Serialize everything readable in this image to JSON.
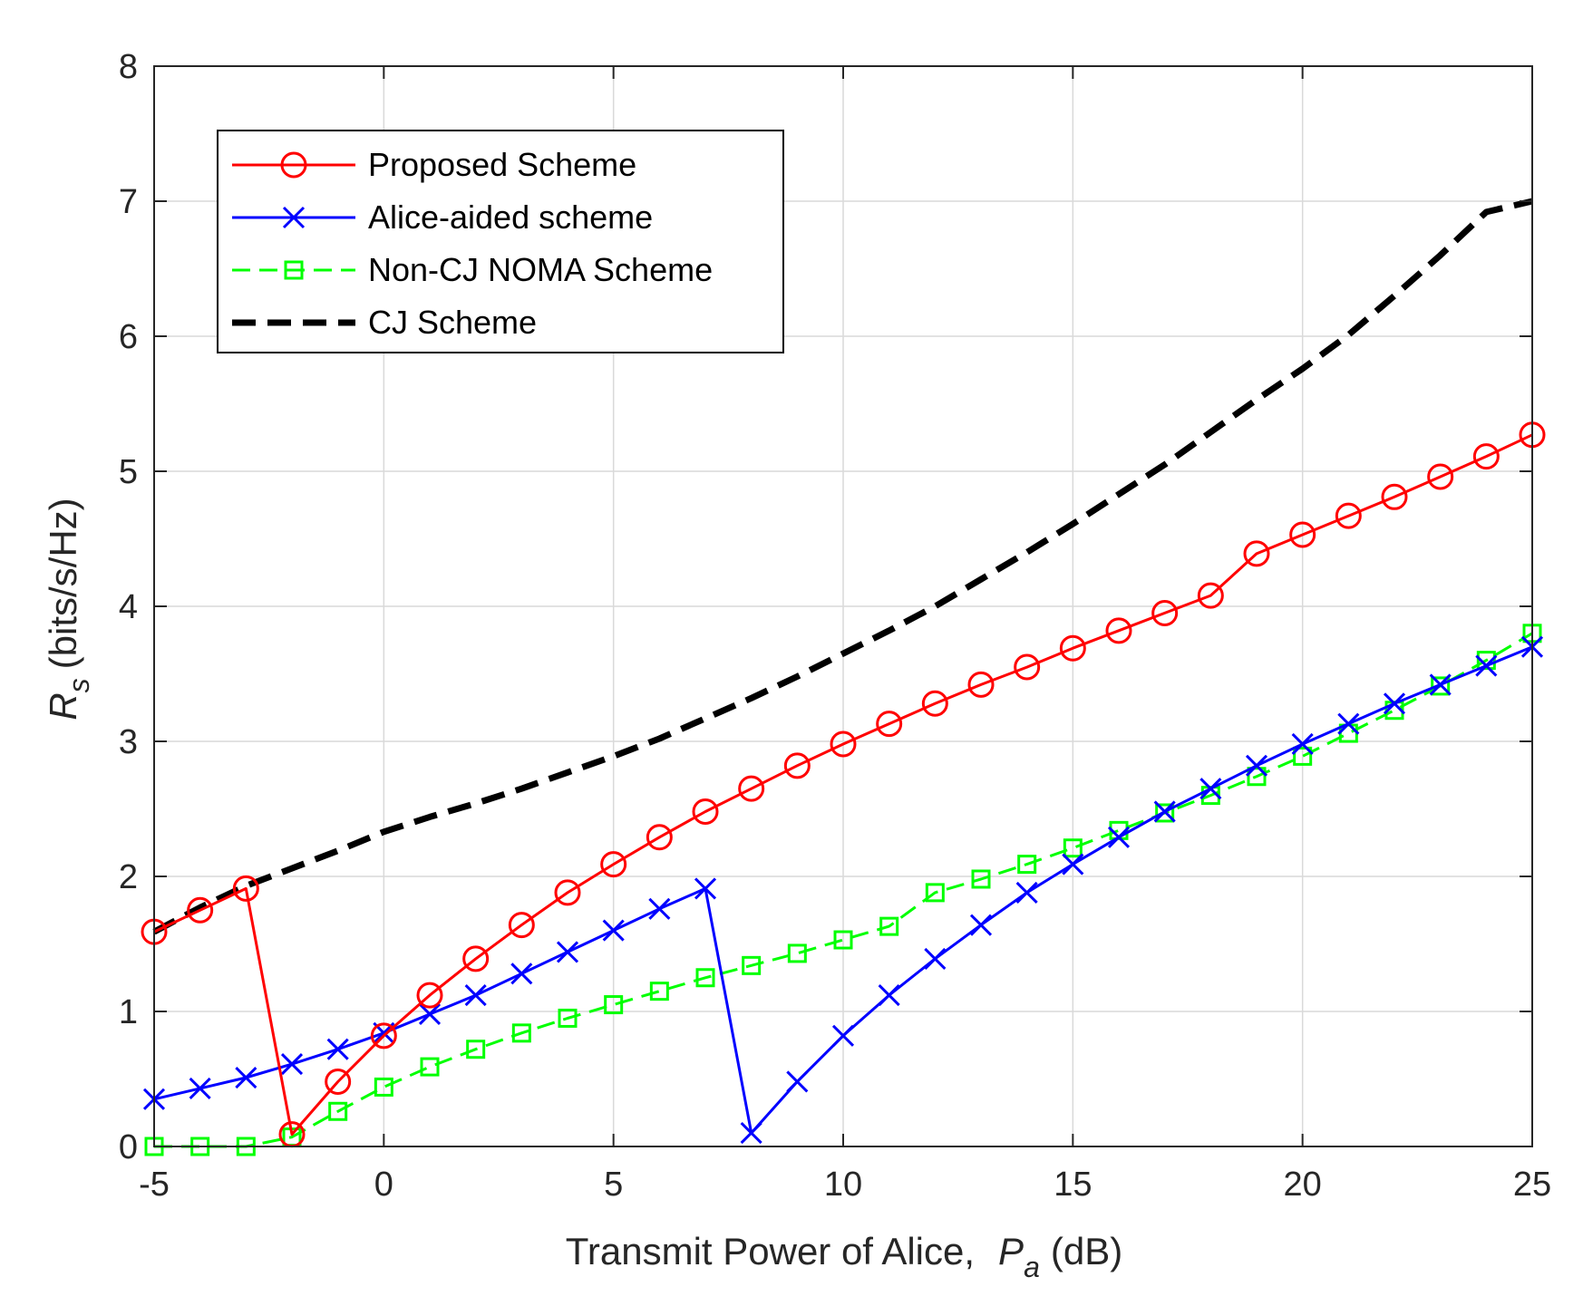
{
  "chart_data": {
    "type": "line",
    "title": "",
    "xlabel": {
      "prefix": "Transmit Power of Alice,",
      "symbol": "P",
      "subscript": "a",
      "unit": "(dB)"
    },
    "ylabel": {
      "symbol": "R",
      "subscript": "s",
      "unit": "(bits/s/Hz)"
    },
    "xlim": [
      -5,
      25
    ],
    "ylim": [
      0,
      8
    ],
    "xticks": [
      -5,
      0,
      5,
      10,
      15,
      20,
      25
    ],
    "yticks": [
      0,
      1,
      2,
      3,
      4,
      5,
      6,
      7,
      8
    ],
    "grid": true,
    "legend_position": "top-left",
    "series": [
      {
        "name": "Proposed Scheme",
        "color": "#ff0000",
        "line_style": "solid",
        "marker": "circle",
        "x": [
          -5,
          -4,
          -3,
          -2,
          -1,
          0,
          1,
          2,
          3,
          4,
          5,
          6,
          7,
          8,
          9,
          10,
          11,
          12,
          13,
          14,
          15,
          16,
          17,
          18,
          19,
          20,
          21,
          22,
          23,
          24,
          25
        ],
        "values": [
          1.59,
          1.75,
          1.91,
          0.09,
          0.48,
          0.82,
          1.12,
          1.39,
          1.64,
          1.88,
          2.09,
          2.29,
          2.48,
          2.65,
          2.82,
          2.98,
          3.13,
          3.28,
          3.42,
          3.55,
          3.69,
          3.82,
          3.95,
          4.08,
          4.39,
          4.53,
          4.67,
          4.81,
          4.96,
          5.11,
          5.27
        ]
      },
      {
        "name": "Alice-aided scheme",
        "color": "#0000ff",
        "line_style": "solid",
        "marker": "x",
        "x": [
          -5,
          -4,
          -3,
          -2,
          -1,
          0,
          1,
          2,
          3,
          4,
          5,
          6,
          7,
          8,
          9,
          10,
          11,
          12,
          13,
          14,
          15,
          16,
          17,
          18,
          19,
          20,
          21,
          22,
          23,
          24,
          25
        ],
        "values": [
          0.35,
          0.43,
          0.51,
          0.61,
          0.72,
          0.84,
          0.98,
          1.12,
          1.28,
          1.44,
          1.6,
          1.76,
          1.91,
          0.1,
          0.48,
          0.82,
          1.12,
          1.39,
          1.64,
          1.88,
          2.09,
          2.29,
          2.48,
          2.65,
          2.82,
          2.98,
          3.13,
          3.28,
          3.42,
          3.56,
          3.7
        ]
      },
      {
        "name": "Non-CJ NOMA Scheme",
        "color": "#00ff00",
        "line_style": "dashed",
        "marker": "square",
        "x": [
          -5,
          -4,
          -3,
          -2,
          -1,
          0,
          1,
          2,
          3,
          4,
          5,
          6,
          7,
          8,
          9,
          10,
          11,
          12,
          13,
          14,
          15,
          16,
          17,
          18,
          19,
          20,
          21,
          22,
          23,
          24,
          25
        ],
        "values": [
          0,
          0,
          0,
          0.07,
          0.26,
          0.44,
          0.59,
          0.72,
          0.84,
          0.95,
          1.05,
          1.15,
          1.25,
          1.34,
          1.43,
          1.53,
          1.63,
          1.88,
          1.98,
          2.09,
          2.21,
          2.34,
          2.47,
          2.6,
          2.74,
          2.89,
          3.06,
          3.23,
          3.41,
          3.6,
          3.8
        ]
      },
      {
        "name": "CJ Scheme",
        "color": "#000000",
        "line_style": "dashed",
        "marker": "none",
        "x": [
          -5,
          -4,
          -3,
          -2,
          -1,
          0,
          1,
          2,
          3,
          4,
          5,
          6,
          7,
          8,
          9,
          10,
          11,
          12,
          13,
          14,
          15,
          16,
          17,
          18,
          19,
          20,
          21,
          22,
          23,
          24,
          25
        ],
        "values": [
          1.59,
          1.77,
          1.93,
          2.06,
          2.19,
          2.33,
          2.44,
          2.54,
          2.65,
          2.77,
          2.89,
          3.02,
          3.17,
          3.32,
          3.48,
          3.65,
          3.82,
          4.0,
          4.2,
          4.4,
          4.61,
          4.83,
          5.05,
          5.29,
          5.53,
          5.76,
          6.01,
          6.3,
          6.6,
          6.92,
          7.0
        ]
      }
    ]
  }
}
